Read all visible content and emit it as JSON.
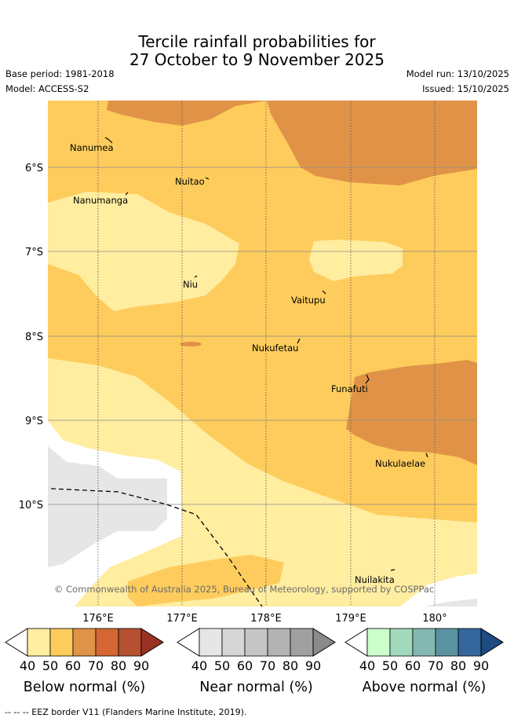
{
  "title_line1": "Tercile rainfall probabilities for",
  "title_line2": "27 October to 9 November 2025",
  "base_period": "Base period: 1981-2018",
  "model": "Model: ACCESS-S2",
  "model_run": "Model run: 13/10/2025",
  "issued": "Issued: 15/10/2025",
  "copyright": "© Commonwealth of Australia 2025, Bureau of Meteorology, supported by COSPPac",
  "lat_labels": [
    "6°S",
    "7°S",
    "8°S",
    "9°S",
    "10°S"
  ],
  "lon_labels": [
    "176°E",
    "177°E",
    "178°E",
    "179°E",
    "180°"
  ],
  "places": [
    {
      "name": "Nanumea"
    },
    {
      "name": "Nuitao"
    },
    {
      "name": "Nanumanga"
    },
    {
      "name": "Niu"
    },
    {
      "name": "Vaitupu"
    },
    {
      "name": "Nukufetau"
    },
    {
      "name": "Funafuti"
    },
    {
      "name": "Nukulaelae"
    },
    {
      "name": "Nuilakita"
    }
  ],
  "colorbars": [
    {
      "title": "Below normal (%)",
      "ticks": [
        "40",
        "50",
        "60",
        "70",
        "80",
        "90"
      ],
      "colors": [
        "#ffffff",
        "#ffeda0",
        "#fecc5c",
        "#e09346",
        "#d46734",
        "#b55030",
        "#9a3224"
      ]
    },
    {
      "title": "Near normal (%)",
      "ticks": [
        "40",
        "50",
        "60",
        "70",
        "80",
        "90"
      ],
      "colors": [
        "#ffffff",
        "#e6e6e6",
        "#d6d6d6",
        "#c6c6c6",
        "#b3b3b3",
        "#a0a0a0",
        "#8a8a8a"
      ]
    },
    {
      "title": "Above normal (%)",
      "ticks": [
        "40",
        "50",
        "60",
        "70",
        "80",
        "90"
      ],
      "colors": [
        "#ffffff",
        "#ccffcc",
        "#a1d9bc",
        "#84b8b2",
        "#5a92a0",
        "#35679d",
        "#1d4b82"
      ]
    }
  ],
  "footnote": "--  --  -- EEZ border V11 (Flanders Marine Institute, 2019)."
}
